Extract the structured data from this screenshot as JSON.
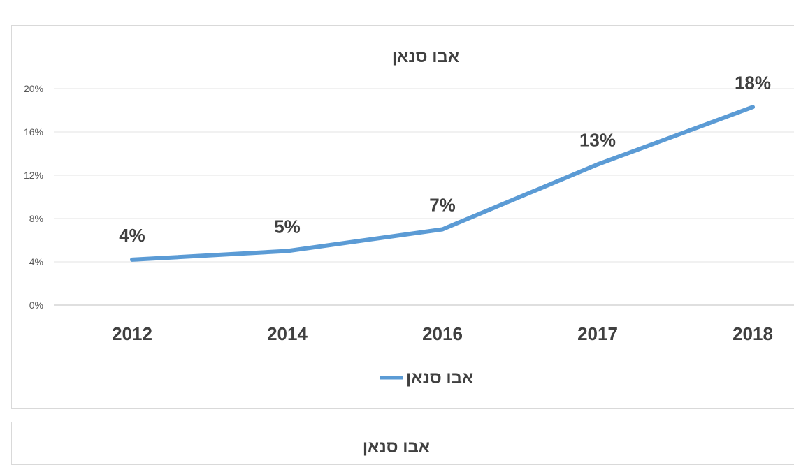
{
  "chart_data": {
    "type": "line",
    "title": "אבו סנאן",
    "categories": [
      "2012",
      "2014",
      "2016",
      "2017",
      "2018"
    ],
    "series": [
      {
        "name": "אבו סנאן",
        "values": [
          4.2,
          5,
          7,
          13,
          18.3
        ],
        "labels": [
          "4%",
          "5%",
          "7%",
          "13%",
          "18%"
        ],
        "color": "#5b9bd5"
      }
    ],
    "y_ticks": [
      "0%",
      "4%",
      "8%",
      "12%",
      "16%",
      "20%"
    ],
    "ylim": [
      0,
      20
    ],
    "grid": true,
    "legend": "bottom"
  },
  "second_panel": {
    "title": "אבו סנאן"
  }
}
